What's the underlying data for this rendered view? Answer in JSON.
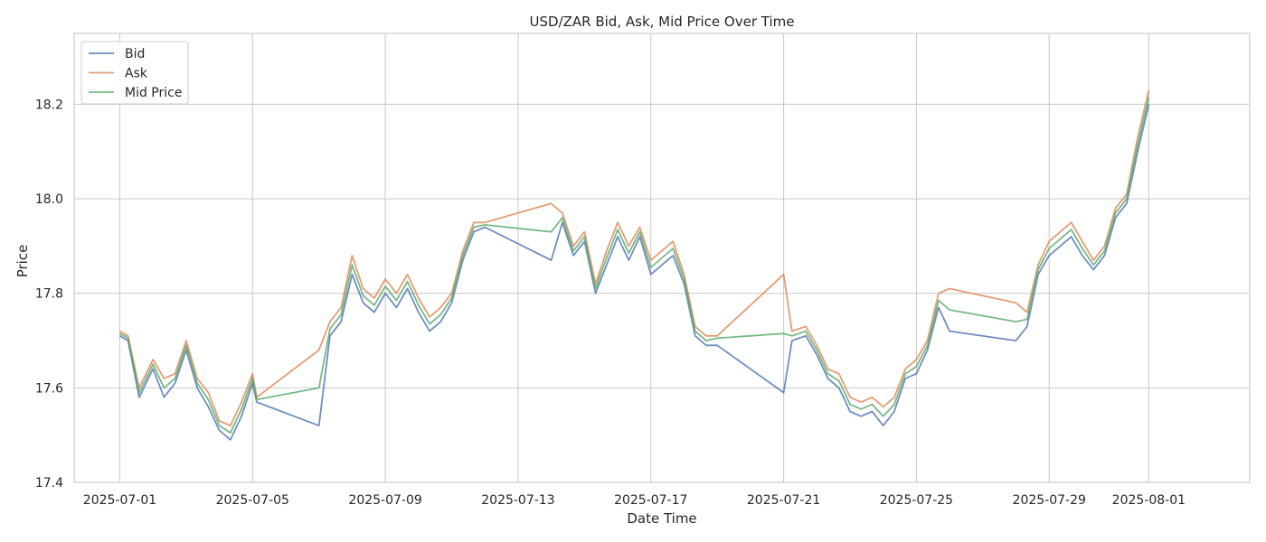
{
  "chart_data": {
    "type": "line",
    "title": "USD/ZAR Bid, Ask, Mid Price Over Time",
    "xlabel": "Date Time",
    "ylabel": "Price",
    "xlim": [
      "2025-06-29T15:00",
      "2025-08-04T01:00"
    ],
    "ylim": [
      17.4,
      18.35
    ],
    "x_ticks": [
      "2025-07-01",
      "2025-07-05",
      "2025-07-09",
      "2025-07-13",
      "2025-07-17",
      "2025-07-21",
      "2025-07-25",
      "2025-07-29",
      "2025-08-01"
    ],
    "y_ticks": [
      17.4,
      17.6,
      17.8,
      18.0,
      18.2
    ],
    "y_tick_labels": [
      "17.4",
      "17.6",
      "17.8",
      "18.0",
      "18.2"
    ],
    "grid": true,
    "legend_position": "top-left",
    "series": [
      {
        "name": "Bid",
        "color": "#4c72b0",
        "points": [
          [
            "2025-07-01T00:00",
            17.71
          ],
          [
            "2025-07-01T06:00",
            17.7
          ],
          [
            "2025-07-01T14:00",
            17.58
          ],
          [
            "2025-07-02T00:00",
            17.64
          ],
          [
            "2025-07-02T08:00",
            17.58
          ],
          [
            "2025-07-02T16:00",
            17.61
          ],
          [
            "2025-07-03T00:00",
            17.68
          ],
          [
            "2025-07-03T08:00",
            17.6
          ],
          [
            "2025-07-03T16:00",
            17.56
          ],
          [
            "2025-07-04T00:00",
            17.51
          ],
          [
            "2025-07-04T08:00",
            17.49
          ],
          [
            "2025-07-04T16:00",
            17.54
          ],
          [
            "2025-07-05T00:00",
            17.61
          ],
          [
            "2025-07-05T03:00",
            17.57
          ],
          [
            "2025-07-07T00:00",
            17.52
          ],
          [
            "2025-07-07T08:00",
            17.71
          ],
          [
            "2025-07-07T16:00",
            17.74
          ],
          [
            "2025-07-08T00:00",
            17.84
          ],
          [
            "2025-07-08T08:00",
            17.78
          ],
          [
            "2025-07-08T16:00",
            17.76
          ],
          [
            "2025-07-09T00:00",
            17.8
          ],
          [
            "2025-07-09T08:00",
            17.77
          ],
          [
            "2025-07-09T16:00",
            17.81
          ],
          [
            "2025-07-10T00:00",
            17.76
          ],
          [
            "2025-07-10T08:00",
            17.72
          ],
          [
            "2025-07-10T16:00",
            17.74
          ],
          [
            "2025-07-11T00:00",
            17.78
          ],
          [
            "2025-07-11T08:00",
            17.87
          ],
          [
            "2025-07-11T16:00",
            17.93
          ],
          [
            "2025-07-12T00:00",
            17.94
          ],
          [
            "2025-07-14T00:00",
            17.87
          ],
          [
            "2025-07-14T08:00",
            17.95
          ],
          [
            "2025-07-14T16:00",
            17.88
          ],
          [
            "2025-07-15T00:00",
            17.91
          ],
          [
            "2025-07-15T08:00",
            17.8
          ],
          [
            "2025-07-15T16:00",
            17.86
          ],
          [
            "2025-07-16T00:00",
            17.92
          ],
          [
            "2025-07-16T08:00",
            17.87
          ],
          [
            "2025-07-16T16:00",
            17.92
          ],
          [
            "2025-07-17T00:00",
            17.84
          ],
          [
            "2025-07-17T08:00",
            17.86
          ],
          [
            "2025-07-17T16:00",
            17.88
          ],
          [
            "2025-07-18T00:00",
            17.82
          ],
          [
            "2025-07-18T08:00",
            17.71
          ],
          [
            "2025-07-18T16:00",
            17.69
          ],
          [
            "2025-07-19T00:00",
            17.69
          ],
          [
            "2025-07-21T00:00",
            17.59
          ],
          [
            "2025-07-21T06:00",
            17.7
          ],
          [
            "2025-07-21T16:00",
            17.71
          ],
          [
            "2025-07-22T00:00",
            17.67
          ],
          [
            "2025-07-22T08:00",
            17.62
          ],
          [
            "2025-07-22T16:00",
            17.6
          ],
          [
            "2025-07-23T00:00",
            17.55
          ],
          [
            "2025-07-23T08:00",
            17.54
          ],
          [
            "2025-07-23T16:00",
            17.55
          ],
          [
            "2025-07-24T00:00",
            17.52
          ],
          [
            "2025-07-24T08:00",
            17.55
          ],
          [
            "2025-07-24T16:00",
            17.62
          ],
          [
            "2025-07-25T00:00",
            17.63
          ],
          [
            "2025-07-25T08:00",
            17.68
          ],
          [
            "2025-07-25T16:00",
            17.77
          ],
          [
            "2025-07-26T00:00",
            17.72
          ],
          [
            "2025-07-28T00:00",
            17.7
          ],
          [
            "2025-07-28T08:00",
            17.73
          ],
          [
            "2025-07-28T16:00",
            17.84
          ],
          [
            "2025-07-29T00:00",
            17.88
          ],
          [
            "2025-07-29T08:00",
            17.9
          ],
          [
            "2025-07-29T16:00",
            17.92
          ],
          [
            "2025-07-30T00:00",
            17.88
          ],
          [
            "2025-07-30T08:00",
            17.85
          ],
          [
            "2025-07-30T16:00",
            17.88
          ],
          [
            "2025-07-31T00:00",
            17.96
          ],
          [
            "2025-07-31T08:00",
            17.99
          ],
          [
            "2025-07-31T16:00",
            18.1
          ],
          [
            "2025-08-01T00:00",
            18.2
          ]
        ]
      },
      {
        "name": "Ask",
        "color": "#dd8452",
        "points": [
          [
            "2025-07-01T00:00",
            17.72
          ],
          [
            "2025-07-01T06:00",
            17.71
          ],
          [
            "2025-07-01T14:00",
            17.6
          ],
          [
            "2025-07-02T00:00",
            17.66
          ],
          [
            "2025-07-02T08:00",
            17.62
          ],
          [
            "2025-07-02T16:00",
            17.63
          ],
          [
            "2025-07-03T00:00",
            17.7
          ],
          [
            "2025-07-03T08:00",
            17.62
          ],
          [
            "2025-07-03T16:00",
            17.59
          ],
          [
            "2025-07-04T00:00",
            17.53
          ],
          [
            "2025-07-04T08:00",
            17.52
          ],
          [
            "2025-07-04T16:00",
            17.57
          ],
          [
            "2025-07-05T00:00",
            17.63
          ],
          [
            "2025-07-05T03:00",
            17.58
          ],
          [
            "2025-07-07T00:00",
            17.68
          ],
          [
            "2025-07-07T08:00",
            17.74
          ],
          [
            "2025-07-07T16:00",
            17.77
          ],
          [
            "2025-07-08T00:00",
            17.88
          ],
          [
            "2025-07-08T08:00",
            17.81
          ],
          [
            "2025-07-08T16:00",
            17.79
          ],
          [
            "2025-07-09T00:00",
            17.83
          ],
          [
            "2025-07-09T08:00",
            17.8
          ],
          [
            "2025-07-09T16:00",
            17.84
          ],
          [
            "2025-07-10T00:00",
            17.79
          ],
          [
            "2025-07-10T08:00",
            17.75
          ],
          [
            "2025-07-10T16:00",
            17.77
          ],
          [
            "2025-07-11T00:00",
            17.8
          ],
          [
            "2025-07-11T08:00",
            17.89
          ],
          [
            "2025-07-11T16:00",
            17.95
          ],
          [
            "2025-07-12T00:00",
            17.95
          ],
          [
            "2025-07-14T00:00",
            17.99
          ],
          [
            "2025-07-14T08:00",
            17.97
          ],
          [
            "2025-07-14T16:00",
            17.9
          ],
          [
            "2025-07-15T00:00",
            17.93
          ],
          [
            "2025-07-15T08:00",
            17.82
          ],
          [
            "2025-07-15T16:00",
            17.89
          ],
          [
            "2025-07-16T00:00",
            17.95
          ],
          [
            "2025-07-16T08:00",
            17.9
          ],
          [
            "2025-07-16T16:00",
            17.94
          ],
          [
            "2025-07-17T00:00",
            17.87
          ],
          [
            "2025-07-17T08:00",
            17.89
          ],
          [
            "2025-07-17T16:00",
            17.91
          ],
          [
            "2025-07-18T00:00",
            17.84
          ],
          [
            "2025-07-18T08:00",
            17.73
          ],
          [
            "2025-07-18T16:00",
            17.71
          ],
          [
            "2025-07-19T00:00",
            17.71
          ],
          [
            "2025-07-21T00:00",
            17.84
          ],
          [
            "2025-07-21T06:00",
            17.72
          ],
          [
            "2025-07-21T16:00",
            17.73
          ],
          [
            "2025-07-22T00:00",
            17.69
          ],
          [
            "2025-07-22T08:00",
            17.64
          ],
          [
            "2025-07-22T16:00",
            17.63
          ],
          [
            "2025-07-23T00:00",
            17.58
          ],
          [
            "2025-07-23T08:00",
            17.57
          ],
          [
            "2025-07-23T16:00",
            17.58
          ],
          [
            "2025-07-24T00:00",
            17.56
          ],
          [
            "2025-07-24T08:00",
            17.58
          ],
          [
            "2025-07-24T16:00",
            17.64
          ],
          [
            "2025-07-25T00:00",
            17.66
          ],
          [
            "2025-07-25T08:00",
            17.7
          ],
          [
            "2025-07-25T16:00",
            17.8
          ],
          [
            "2025-07-26T00:00",
            17.81
          ],
          [
            "2025-07-28T00:00",
            17.78
          ],
          [
            "2025-07-28T08:00",
            17.76
          ],
          [
            "2025-07-28T16:00",
            17.86
          ],
          [
            "2025-07-29T00:00",
            17.91
          ],
          [
            "2025-07-29T08:00",
            17.93
          ],
          [
            "2025-07-29T16:00",
            17.95
          ],
          [
            "2025-07-30T00:00",
            17.91
          ],
          [
            "2025-07-30T08:00",
            17.87
          ],
          [
            "2025-07-30T16:00",
            17.9
          ],
          [
            "2025-07-31T00:00",
            17.98
          ],
          [
            "2025-07-31T08:00",
            18.01
          ],
          [
            "2025-07-31T16:00",
            18.13
          ],
          [
            "2025-08-01T00:00",
            18.23
          ]
        ]
      },
      {
        "name": "Mid Price",
        "color": "#55a868",
        "points": [
          [
            "2025-07-01T00:00",
            17.715
          ],
          [
            "2025-07-01T06:00",
            17.705
          ],
          [
            "2025-07-01T14:00",
            17.59
          ],
          [
            "2025-07-02T00:00",
            17.65
          ],
          [
            "2025-07-02T08:00",
            17.6
          ],
          [
            "2025-07-02T16:00",
            17.62
          ],
          [
            "2025-07-03T00:00",
            17.69
          ],
          [
            "2025-07-03T08:00",
            17.61
          ],
          [
            "2025-07-03T16:00",
            17.575
          ],
          [
            "2025-07-04T00:00",
            17.52
          ],
          [
            "2025-07-04T08:00",
            17.505
          ],
          [
            "2025-07-04T16:00",
            17.555
          ],
          [
            "2025-07-05T00:00",
            17.62
          ],
          [
            "2025-07-05T03:00",
            17.575
          ],
          [
            "2025-07-07T00:00",
            17.6
          ],
          [
            "2025-07-07T08:00",
            17.725
          ],
          [
            "2025-07-07T16:00",
            17.755
          ],
          [
            "2025-07-08T00:00",
            17.86
          ],
          [
            "2025-07-08T08:00",
            17.795
          ],
          [
            "2025-07-08T16:00",
            17.775
          ],
          [
            "2025-07-09T00:00",
            17.815
          ],
          [
            "2025-07-09T08:00",
            17.785
          ],
          [
            "2025-07-09T16:00",
            17.825
          ],
          [
            "2025-07-10T00:00",
            17.775
          ],
          [
            "2025-07-10T08:00",
            17.735
          ],
          [
            "2025-07-10T16:00",
            17.755
          ],
          [
            "2025-07-11T00:00",
            17.79
          ],
          [
            "2025-07-11T08:00",
            17.88
          ],
          [
            "2025-07-11T16:00",
            17.94
          ],
          [
            "2025-07-12T00:00",
            17.945
          ],
          [
            "2025-07-14T00:00",
            17.93
          ],
          [
            "2025-07-14T08:00",
            17.96
          ],
          [
            "2025-07-14T16:00",
            17.89
          ],
          [
            "2025-07-15T00:00",
            17.92
          ],
          [
            "2025-07-15T08:00",
            17.81
          ],
          [
            "2025-07-15T16:00",
            17.875
          ],
          [
            "2025-07-16T00:00",
            17.935
          ],
          [
            "2025-07-16T08:00",
            17.885
          ],
          [
            "2025-07-16T16:00",
            17.93
          ],
          [
            "2025-07-17T00:00",
            17.855
          ],
          [
            "2025-07-17T08:00",
            17.875
          ],
          [
            "2025-07-17T16:00",
            17.895
          ],
          [
            "2025-07-18T00:00",
            17.83
          ],
          [
            "2025-07-18T08:00",
            17.72
          ],
          [
            "2025-07-18T16:00",
            17.7
          ],
          [
            "2025-07-19T00:00",
            17.705
          ],
          [
            "2025-07-21T00:00",
            17.715
          ],
          [
            "2025-07-21T06:00",
            17.71
          ],
          [
            "2025-07-21T16:00",
            17.72
          ],
          [
            "2025-07-22T00:00",
            17.68
          ],
          [
            "2025-07-22T08:00",
            17.63
          ],
          [
            "2025-07-22T16:00",
            17.615
          ],
          [
            "2025-07-23T00:00",
            17.565
          ],
          [
            "2025-07-23T08:00",
            17.555
          ],
          [
            "2025-07-23T16:00",
            17.565
          ],
          [
            "2025-07-24T00:00",
            17.54
          ],
          [
            "2025-07-24T08:00",
            17.565
          ],
          [
            "2025-07-24T16:00",
            17.63
          ],
          [
            "2025-07-25T00:00",
            17.645
          ],
          [
            "2025-07-25T08:00",
            17.69
          ],
          [
            "2025-07-25T16:00",
            17.785
          ],
          [
            "2025-07-26T00:00",
            17.765
          ],
          [
            "2025-07-28T00:00",
            17.74
          ],
          [
            "2025-07-28T08:00",
            17.745
          ],
          [
            "2025-07-28T16:00",
            17.85
          ],
          [
            "2025-07-29T00:00",
            17.895
          ],
          [
            "2025-07-29T08:00",
            17.915
          ],
          [
            "2025-07-29T16:00",
            17.935
          ],
          [
            "2025-07-30T00:00",
            17.895
          ],
          [
            "2025-07-30T08:00",
            17.86
          ],
          [
            "2025-07-30T16:00",
            17.89
          ],
          [
            "2025-07-31T00:00",
            17.97
          ],
          [
            "2025-07-31T08:00",
            18.0
          ],
          [
            "2025-07-31T16:00",
            18.115
          ],
          [
            "2025-08-01T00:00",
            18.215
          ]
        ]
      }
    ]
  }
}
